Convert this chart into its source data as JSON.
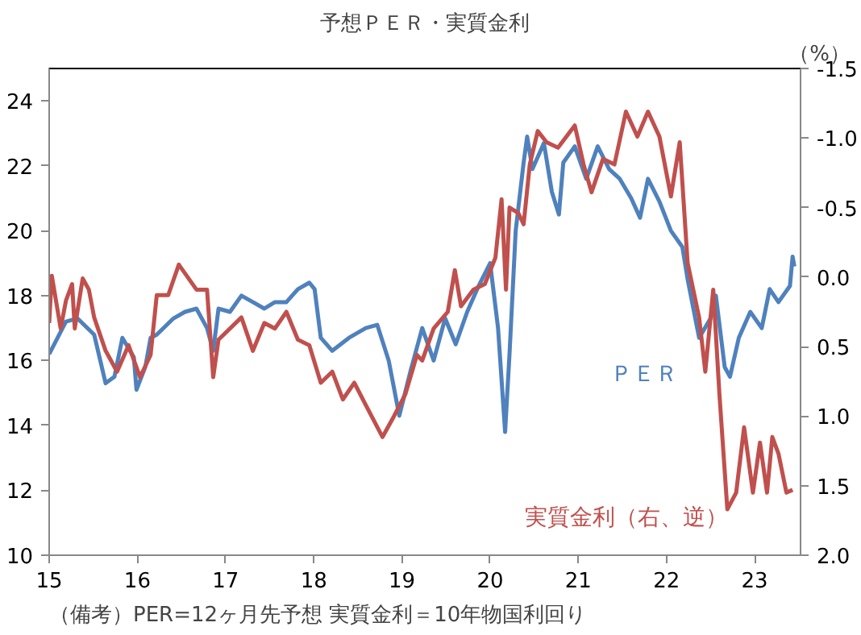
{
  "chart_data": {
    "type": "line",
    "title": "予想ＰＥＲ・実質金利",
    "y2label": "（%）",
    "annotations": [
      "（備考）PER=12ヶ月先予想 実質金利＝10年物国利回り"
    ],
    "xlim": [
      15,
      23.52
    ],
    "xticks": [
      15,
      16,
      17,
      18,
      19,
      20,
      21,
      22,
      23
    ],
    "ylim": [
      10,
      25
    ],
    "yticks": [
      10,
      12,
      14,
      16,
      18,
      20,
      22,
      24
    ],
    "y2lim": [
      2.0,
      -1.5
    ],
    "y2ticks": [
      {
        "value": 2.0,
        "label": "2.0"
      },
      {
        "value": 1.5,
        "label": "1.5"
      },
      {
        "value": 1.0,
        "label": "1.0"
      },
      {
        "value": 0.5,
        "label": "0.5"
      },
      {
        "value": 0.0,
        "label": "0.0"
      },
      {
        "value": -0.5,
        "label": "-0.5"
      },
      {
        "value": -1.0,
        "label": "-1.0"
      },
      {
        "value": -1.5,
        "label": "-1.5"
      }
    ],
    "grid": false,
    "legend": false,
    "series": [
      {
        "name": "ＰＥＲ",
        "color": "#4f81bd",
        "x": [
          15.0,
          15.19,
          15.32,
          15.51,
          15.64,
          15.74,
          15.83,
          15.96,
          15.99,
          16.09,
          16.15,
          16.22,
          16.41,
          16.54,
          16.67,
          16.79,
          16.86,
          16.92,
          17.05,
          17.18,
          17.31,
          17.44,
          17.56,
          17.69,
          17.82,
          17.95,
          18.01,
          18.08,
          18.21,
          18.4,
          18.59,
          18.72,
          18.85,
          18.97,
          19.1,
          19.23,
          19.36,
          19.49,
          19.61,
          19.74,
          19.87,
          20.0,
          20.09,
          20.17,
          20.22,
          20.29,
          20.38,
          20.42,
          20.48,
          20.61,
          20.7,
          20.78,
          20.83,
          20.96,
          21.09,
          21.22,
          21.35,
          21.47,
          21.6,
          21.7,
          21.79,
          21.92,
          22.05,
          22.18,
          22.24,
          22.37,
          22.5,
          22.56,
          22.66,
          22.72,
          22.82,
          22.95,
          23.08,
          23.17,
          23.27,
          23.4,
          23.43,
          23.45
        ],
        "values": [
          16.2,
          17.2,
          17.3,
          16.8,
          15.3,
          15.5,
          16.7,
          16.1,
          15.1,
          15.8,
          16.7,
          16.8,
          17.3,
          17.5,
          17.6,
          17.0,
          16.3,
          17.6,
          17.5,
          18.0,
          17.8,
          17.6,
          17.8,
          17.8,
          18.2,
          18.4,
          18.2,
          16.7,
          16.3,
          16.7,
          17.0,
          17.1,
          16.0,
          14.3,
          15.7,
          17.0,
          16.0,
          17.3,
          16.5,
          17.5,
          18.3,
          19.0,
          17.0,
          13.8,
          16.2,
          20.0,
          22.1,
          22.9,
          21.9,
          22.7,
          21.2,
          20.5,
          22.1,
          22.6,
          21.6,
          22.6,
          21.9,
          21.6,
          21.0,
          20.4,
          21.6,
          20.9,
          20.0,
          19.5,
          18.5,
          16.7,
          17.3,
          18.0,
          15.8,
          15.5,
          16.7,
          17.5,
          17.0,
          18.2,
          17.8,
          18.3,
          19.2,
          18.9
        ]
      },
      {
        "name": "実質金利（右、逆）",
        "color": "#c0504d",
        "axis": "y2",
        "x": [
          15.0,
          15.03,
          15.13,
          15.19,
          15.26,
          15.29,
          15.38,
          15.45,
          15.51,
          15.64,
          15.77,
          15.9,
          16.03,
          16.15,
          16.22,
          16.35,
          16.47,
          16.67,
          16.79,
          16.86,
          16.92,
          17.18,
          17.31,
          17.44,
          17.56,
          17.69,
          17.82,
          17.95,
          18.08,
          18.21,
          18.33,
          18.46,
          18.59,
          18.78,
          18.91,
          19.04,
          19.17,
          19.23,
          19.36,
          19.52,
          19.6,
          19.67,
          19.81,
          19.94,
          20.06,
          20.13,
          20.18,
          20.22,
          20.32,
          20.38,
          20.45,
          20.54,
          20.64,
          20.77,
          20.96,
          21.06,
          21.15,
          21.28,
          21.41,
          21.54,
          21.67,
          21.79,
          21.92,
          22.05,
          22.15,
          22.24,
          22.37,
          22.44,
          22.53,
          22.6,
          22.69,
          22.79,
          22.88,
          22.98,
          23.06,
          23.14,
          23.2,
          23.27,
          23.36,
          23.43
        ],
        "values": [
          0.33,
          -0.01,
          0.37,
          0.17,
          0.05,
          0.37,
          0.01,
          0.09,
          0.29,
          0.53,
          0.68,
          0.49,
          0.72,
          0.56,
          0.13,
          0.13,
          -0.09,
          0.09,
          0.09,
          0.72,
          0.45,
          0.29,
          0.53,
          0.33,
          0.37,
          0.25,
          0.45,
          0.49,
          0.76,
          0.68,
          0.88,
          0.76,
          0.92,
          1.15,
          1.0,
          0.84,
          0.56,
          0.6,
          0.37,
          0.25,
          -0.05,
          0.21,
          0.09,
          0.05,
          -0.14,
          -0.56,
          0.09,
          -0.5,
          -0.46,
          -0.38,
          -0.81,
          -1.05,
          -0.97,
          -0.93,
          -1.09,
          -0.81,
          -0.61,
          -0.85,
          -0.81,
          -1.19,
          -1.01,
          -1.19,
          -1.01,
          -0.58,
          -0.97,
          -0.1,
          0.29,
          0.68,
          0.09,
          0.84,
          1.67,
          1.55,
          1.08,
          1.55,
          1.19,
          1.55,
          1.15,
          1.27,
          1.55,
          1.53
        ]
      }
    ]
  }
}
